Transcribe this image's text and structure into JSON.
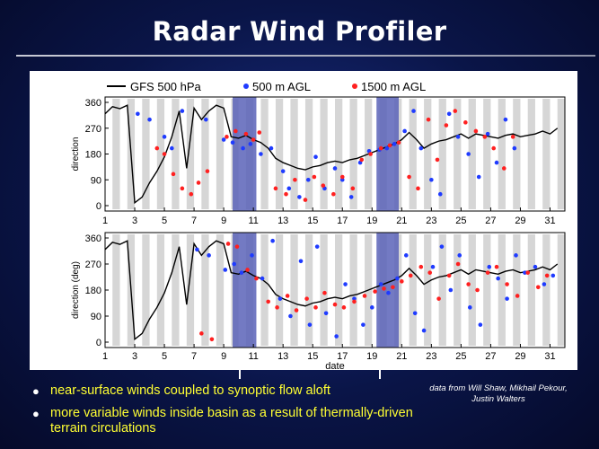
{
  "slide": {
    "title": "Radar Wind Profiler",
    "bullets": [
      "near-surface winds coupled to synoptic flow aloft",
      "more variable winds inside basin as a result of thermally-driven terrain circulations"
    ],
    "credit": "data from Will Shaw, Mikhail Pekour, Justin Walters"
  },
  "colors": {
    "gfs_line": "#000000",
    "agl_500": "#1f3bff",
    "agl_1500": "#ff2020",
    "night_band": "#d6d6d6",
    "highlight": "#5a63b8",
    "text_yellow": "#ffff33"
  },
  "chart_data": [
    {
      "panel": "T1",
      "type": "scatter",
      "xlabel": "",
      "ylabel": "direction",
      "xlim": [
        1,
        32
      ],
      "ylim": [
        0,
        360
      ],
      "x_ticks": [
        "1",
        "3",
        "5",
        "7",
        "9",
        "11",
        "13",
        "15",
        "17",
        "19",
        "21",
        "23",
        "25",
        "27",
        "29",
        "31"
      ],
      "y_ticks": [
        "0",
        "90",
        "180",
        "270",
        "360"
      ],
      "legend": {
        "placement": "top",
        "entries": [
          {
            "name": "GFS 500 hPa",
            "marker": "line"
          },
          {
            "name": "500 m AGL",
            "marker": "dot"
          },
          {
            "name": "1500 m AGL",
            "marker": "dot"
          }
        ]
      },
      "highlight_spans": [
        [
          9.6,
          11.2
        ],
        [
          19.3,
          20.8
        ]
      ],
      "series": [
        {
          "name": "GFS 500 hPa",
          "style": "line",
          "x": [
            1,
            1.5,
            2,
            2.5,
            3,
            3.5,
            4,
            4.5,
            5,
            5.5,
            6,
            6.5,
            7,
            7.5,
            8,
            8.5,
            9,
            9.5,
            10,
            10.5,
            11,
            11.5,
            12,
            12.5,
            13,
            13.5,
            14,
            14.5,
            15,
            15.5,
            16,
            16.5,
            17,
            17.5,
            18,
            18.5,
            19,
            19.5,
            20,
            20.5,
            21,
            21.5,
            22,
            22.5,
            23,
            23.5,
            24,
            24.5,
            25,
            25.5,
            26,
            26.5,
            27,
            27.5,
            28,
            28.5,
            29,
            29.5,
            30,
            30.5,
            31,
            31.5
          ],
          "y": [
            320,
            345,
            338,
            350,
            10,
            30,
            80,
            120,
            170,
            240,
            330,
            130,
            340,
            300,
            330,
            350,
            340,
            240,
            235,
            245,
            230,
            220,
            200,
            165,
            150,
            140,
            130,
            125,
            135,
            140,
            150,
            155,
            150,
            160,
            165,
            175,
            185,
            195,
            205,
            215,
            230,
            255,
            230,
            200,
            215,
            225,
            230,
            240,
            250,
            235,
            250,
            245,
            240,
            235,
            245,
            250,
            240,
            245,
            250,
            260,
            250,
            270
          ]
        },
        {
          "name": "500 m AGL",
          "style": "scatter",
          "x": [
            3.2,
            4,
            5,
            5.5,
            6.2,
            7.8,
            9,
            9.6,
            10.3,
            10.8,
            11.5,
            12.2,
            13,
            13.4,
            14.1,
            14.7,
            15.2,
            15.8,
            16.5,
            17,
            17.6,
            18.2,
            18.8,
            19.5,
            20,
            20.5,
            21.2,
            21.8,
            22.3,
            23,
            23.6,
            24.2,
            24.8,
            25.5,
            26.2,
            26.8,
            27.4,
            28,
            28.6
          ],
          "y": [
            320,
            300,
            240,
            200,
            330,
            300,
            230,
            220,
            200,
            215,
            180,
            200,
            120,
            60,
            30,
            90,
            170,
            60,
            130,
            90,
            30,
            150,
            190,
            195,
            200,
            215,
            260,
            330,
            200,
            90,
            40,
            320,
            240,
            180,
            100,
            250,
            150,
            300,
            200
          ]
        },
        {
          "name": "1500 m AGL",
          "style": "scatter",
          "x": [
            4.5,
            5,
            5.6,
            6.2,
            6.8,
            7.3,
            7.9,
            9.2,
            9.8,
            10.5,
            11,
            11.4,
            12.5,
            13.2,
            13.8,
            14.5,
            15.1,
            15.7,
            16.4,
            17,
            17.7,
            18.3,
            18.9,
            19.6,
            20.2,
            20.8,
            21.5,
            22.1,
            22.8,
            23.4,
            24,
            24.6,
            25.3,
            26,
            26.6,
            27.2,
            27.9,
            28.5
          ],
          "y": [
            200,
            180,
            110,
            60,
            40,
            80,
            120,
            240,
            260,
            250,
            230,
            255,
            60,
            40,
            90,
            20,
            100,
            70,
            40,
            100,
            60,
            160,
            180,
            200,
            210,
            220,
            100,
            60,
            300,
            160,
            280,
            330,
            290,
            260,
            240,
            200,
            130,
            240
          ]
        }
      ]
    },
    {
      "panel": "T0",
      "type": "scatter",
      "xlabel": "date",
      "ylabel": "direction (deg)",
      "xlim": [
        1,
        32
      ],
      "ylim": [
        0,
        360
      ],
      "x_ticks": [
        "1",
        "3",
        "5",
        "7",
        "9",
        "11",
        "13",
        "15",
        "17",
        "19",
        "21",
        "23",
        "25",
        "27",
        "29",
        "31"
      ],
      "y_ticks": [
        "0",
        "90",
        "180",
        "270",
        "360"
      ],
      "highlight_spans": [
        [
          9.6,
          11.2
        ],
        [
          19.3,
          20.8
        ]
      ],
      "series": [
        {
          "name": "GFS 500 hPa",
          "style": "line",
          "x": [
            1,
            1.5,
            2,
            2.5,
            3,
            3.5,
            4,
            4.5,
            5,
            5.5,
            6,
            6.5,
            7,
            7.5,
            8,
            8.5,
            9,
            9.5,
            10,
            10.5,
            11,
            11.5,
            12,
            12.5,
            13,
            13.5,
            14,
            14.5,
            15,
            15.5,
            16,
            16.5,
            17,
            17.5,
            18,
            18.5,
            19,
            19.5,
            20,
            20.5,
            21,
            21.5,
            22,
            22.5,
            23,
            23.5,
            24,
            24.5,
            25,
            25.5,
            26,
            26.5,
            27,
            27.5,
            28,
            28.5,
            29,
            29.5,
            30,
            30.5,
            31,
            31.5
          ],
          "y": [
            320,
            345,
            338,
            350,
            10,
            30,
            80,
            120,
            170,
            240,
            330,
            130,
            340,
            300,
            330,
            350,
            340,
            240,
            235,
            245,
            230,
            220,
            200,
            165,
            150,
            140,
            130,
            125,
            135,
            140,
            150,
            155,
            150,
            160,
            165,
            175,
            185,
            195,
            205,
            215,
            230,
            255,
            230,
            200,
            215,
            225,
            230,
            240,
            250,
            235,
            250,
            245,
            240,
            235,
            245,
            250,
            240,
            245,
            250,
            260,
            250,
            270
          ]
        },
        {
          "name": "500 m AGL",
          "style": "scatter",
          "x": [
            7.2,
            8,
            9.1,
            9.7,
            10.2,
            10.9,
            11.6,
            12.3,
            12.8,
            13.5,
            14.2,
            14.8,
            15.3,
            15.9,
            16.6,
            17.2,
            17.8,
            18.4,
            19,
            19.6,
            20.1,
            20.7,
            21.3,
            21.9,
            22.5,
            23.1,
            23.7,
            24.3,
            24.9,
            25.6,
            26.3,
            26.9,
            27.5,
            28.1,
            28.7,
            29.3,
            30,
            30.6,
            31.2
          ],
          "y": [
            320,
            300,
            250,
            270,
            240,
            300,
            220,
            350,
            150,
            90,
            280,
            60,
            330,
            100,
            20,
            200,
            150,
            60,
            120,
            200,
            170,
            220,
            300,
            100,
            40,
            260,
            330,
            180,
            300,
            120,
            60,
            260,
            220,
            150,
            300,
            240,
            260,
            200,
            230
          ]
        },
        {
          "name": "1500 m AGL",
          "style": "scatter",
          "x": [
            7.5,
            8.2,
            9.3,
            9.9,
            10.6,
            11.2,
            12,
            12.6,
            13.3,
            13.9,
            14.6,
            15.2,
            15.8,
            16.5,
            17.1,
            17.8,
            18.5,
            19.2,
            19.8,
            20.4,
            21,
            21.6,
            22.3,
            22.9,
            23.5,
            24.2,
            24.8,
            25.5,
            26.1,
            26.8,
            27.4,
            28.1,
            28.8,
            29.5,
            30.2,
            30.8
          ],
          "y": [
            30,
            10,
            340,
            330,
            250,
            220,
            140,
            120,
            160,
            110,
            150,
            120,
            170,
            130,
            120,
            140,
            160,
            175,
            185,
            190,
            210,
            230,
            260,
            240,
            150,
            230,
            270,
            200,
            180,
            240,
            260,
            200,
            160,
            240,
            190,
            230
          ]
        }
      ]
    }
  ]
}
